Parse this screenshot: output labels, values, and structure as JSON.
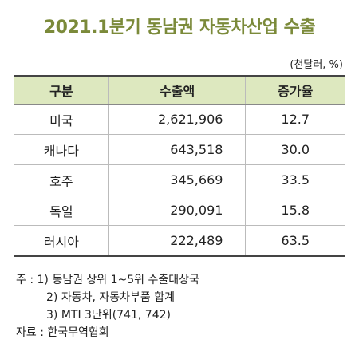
{
  "title": "2021.1분기 동남권 자동차산업 수출",
  "unit": "(천달러, %)",
  "table": {
    "headers": [
      "구분",
      "수출액",
      "증가율"
    ],
    "rows": [
      {
        "category": "미국",
        "export": "2,621,906",
        "rate": "12.7"
      },
      {
        "category": "캐나다",
        "export": "643,518",
        "rate": "30.0"
      },
      {
        "category": "호주",
        "export": "345,669",
        "rate": "33.5"
      },
      {
        "category": "독일",
        "export": "290,091",
        "rate": "15.8"
      },
      {
        "category": "러시아",
        "export": "222,489",
        "rate": "63.5"
      }
    ]
  },
  "notes": {
    "note1": "주 : 1) 동남권 상위 1~5위 수출대상국",
    "note2": "2) 자동차, 자동차부품 합계",
    "note3": "3) MTI 3단위(741, 742)",
    "source": "자료 : 한국무역협회"
  },
  "colors": {
    "title": "#7b8a3a",
    "header_bg": "#dde8bf"
  }
}
